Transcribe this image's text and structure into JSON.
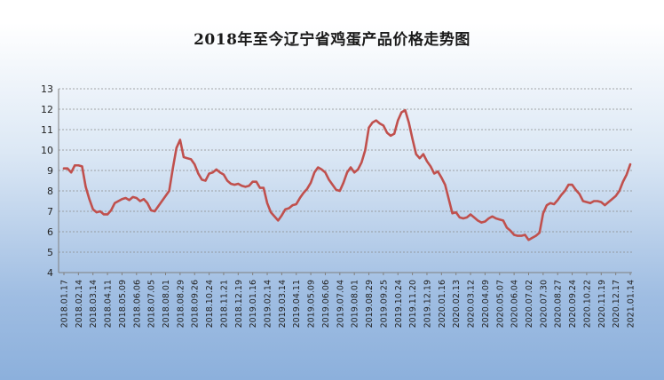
{
  "chart_data": {
    "type": "line",
    "title": "2018年至今辽宁省鸡蛋产品价格走势图",
    "xlabel": "",
    "ylabel": "",
    "ylim": [
      4,
      13
    ],
    "y_ticks": [
      4,
      5,
      6,
      7,
      8,
      9,
      10,
      11,
      12,
      13
    ],
    "grid": true,
    "x_tick_labels": [
      "2018.01.17",
      "2018.02.14",
      "2018.03.14",
      "2018.04.11",
      "2018.05.09",
      "2018.06.06",
      "2018.07.05",
      "2018.08.01",
      "2018.08.29",
      "2018.09.26",
      "2018.10.24",
      "2018.11.21",
      "2018.12.19",
      "2019.01.16",
      "2019.02.14",
      "2019.03.14",
      "2019.04.11",
      "2019.05.09",
      "2019.06.06",
      "2019.07.04",
      "2019.08.01",
      "2019.08.29",
      "2019.09.25",
      "2019.10.24",
      "2019.11.20",
      "2019.12.19",
      "2020.01.16",
      "2020.02.13",
      "2020.03.12",
      "2020.04.09",
      "2020.05.07",
      "2020.06.04",
      "2020.07.02",
      "2020.07.30",
      "2020.08.27",
      "2020.09.24",
      "2020.10.22",
      "2020.11.19",
      "2020.12.17",
      "2021.01.14"
    ],
    "series": [
      {
        "name": "",
        "color": "#c0504d",
        "values": [
          9.1,
          9.1,
          8.9,
          9.25,
          9.25,
          9.2,
          8.2,
          7.6,
          7.1,
          6.95,
          7.0,
          6.85,
          6.85,
          7.05,
          7.4,
          7.5,
          7.6,
          7.65,
          7.55,
          7.7,
          7.65,
          7.5,
          7.6,
          7.4,
          7.05,
          7.0,
          7.25,
          7.5,
          7.75,
          8.0,
          9.1,
          10.1,
          10.5,
          9.65,
          9.6,
          9.55,
          9.3,
          8.85,
          8.55,
          8.5,
          8.85,
          8.9,
          9.05,
          8.9,
          8.8,
          8.5,
          8.35,
          8.3,
          8.35,
          8.25,
          8.2,
          8.25,
          8.45,
          8.45,
          8.15,
          8.15,
          7.4,
          6.95,
          6.75,
          6.55,
          6.8,
          7.1,
          7.15,
          7.3,
          7.35,
          7.65,
          7.9,
          8.1,
          8.4,
          8.9,
          9.15,
          9.05,
          8.9,
          8.55,
          8.3,
          8.05,
          8.0,
          8.4,
          8.9,
          9.15,
          8.9,
          9.05,
          9.4,
          10.0,
          11.1,
          11.35,
          11.45,
          11.3,
          11.2,
          10.85,
          10.7,
          10.8,
          11.45,
          11.85,
          11.95,
          11.35,
          10.55,
          9.8,
          9.6,
          9.8,
          9.45,
          9.2,
          8.85,
          8.95,
          8.65,
          8.3,
          7.6,
          6.9,
          6.95,
          6.7,
          6.65,
          6.7,
          6.85,
          6.7,
          6.55,
          6.45,
          6.5,
          6.65,
          6.75,
          6.65,
          6.6,
          6.55,
          6.2,
          6.05,
          5.85,
          5.8,
          5.8,
          5.85,
          5.6,
          5.7,
          5.8,
          5.95,
          6.9,
          7.3,
          7.4,
          7.35,
          7.55,
          7.8,
          8.0,
          8.3,
          8.3,
          8.05,
          7.85,
          7.5,
          7.45,
          7.4,
          7.5,
          7.5,
          7.45,
          7.3,
          7.45,
          7.6,
          7.75,
          8.0,
          8.45,
          8.8,
          9.3
        ]
      }
    ]
  }
}
